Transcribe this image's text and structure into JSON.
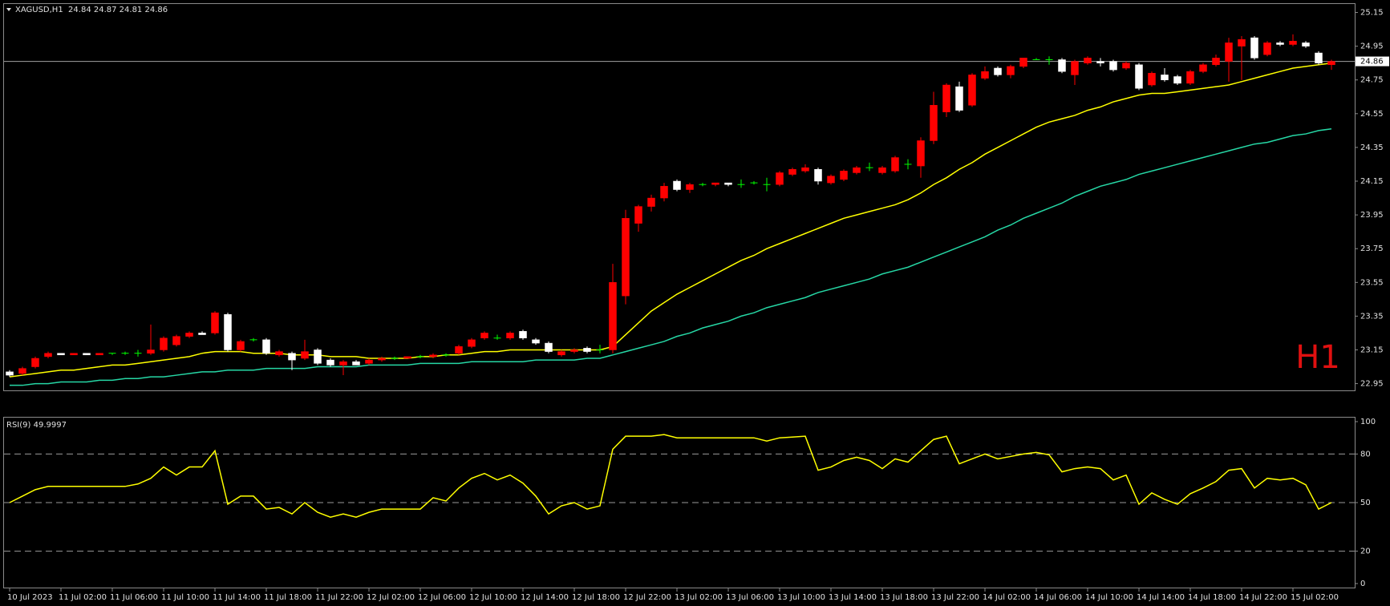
{
  "chart_data": [
    {
      "type": "candlestick",
      "title": "XAGUSD,H1  24.84 24.87 24.81 24.86",
      "annotation": "H1",
      "open": [
        23.02,
        23.01,
        23.05,
        23.11,
        23.13,
        23.12,
        23.13,
        23.12,
        23.13,
        23.13,
        23.13,
        23.13,
        23.15,
        23.18,
        23.23,
        23.25,
        23.25,
        23.36,
        23.15,
        23.21,
        23.21,
        23.12,
        23.13,
        23.1,
        23.15,
        23.09,
        23.06,
        23.08,
        23.07,
        23.09,
        23.1,
        23.1,
        23.11,
        23.11,
        23.12,
        23.13,
        23.17,
        23.22,
        23.22,
        23.22,
        23.26,
        23.21,
        23.19,
        23.12,
        23.14,
        23.16,
        23.15,
        23.15,
        23.47,
        23.9,
        24.0,
        24.05,
        24.15,
        24.1,
        24.13,
        24.13,
        24.14,
        24.13,
        24.14,
        24.13,
        24.13,
        24.19,
        24.21,
        24.22,
        24.14,
        24.16,
        24.2,
        24.23,
        24.2,
        24.21,
        24.25,
        24.24,
        24.39,
        24.56,
        24.71,
        24.6,
        24.76,
        24.82,
        24.78,
        24.83,
        24.87,
        24.87,
        24.87,
        24.78,
        24.85,
        24.86,
        24.86,
        24.82,
        24.84,
        24.72,
        24.78,
        24.77,
        24.73,
        24.8,
        24.84,
        24.86,
        24.95,
        25.0,
        24.9,
        24.97,
        24.96,
        24.97,
        24.91,
        24.84
      ],
      "high": [
        23.03,
        23.05,
        23.11,
        23.14,
        23.13,
        23.13,
        23.13,
        23.13,
        23.13,
        23.14,
        23.15,
        23.3,
        23.23,
        23.24,
        23.26,
        23.26,
        23.38,
        23.37,
        23.21,
        23.22,
        23.22,
        23.15,
        23.14,
        23.21,
        23.16,
        23.1,
        23.09,
        23.09,
        23.1,
        23.11,
        23.11,
        23.11,
        23.12,
        23.13,
        23.13,
        23.18,
        23.22,
        23.26,
        23.24,
        23.26,
        23.27,
        23.22,
        23.2,
        23.15,
        23.16,
        23.17,
        23.18,
        23.66,
        23.98,
        24.01,
        24.07,
        24.14,
        24.16,
        24.14,
        24.14,
        24.14,
        24.14,
        24.16,
        24.15,
        24.17,
        24.21,
        24.23,
        24.25,
        24.23,
        24.19,
        24.22,
        24.24,
        24.26,
        24.24,
        24.3,
        24.28,
        24.41,
        24.68,
        24.73,
        24.74,
        24.79,
        24.83,
        24.83,
        24.84,
        24.88,
        24.88,
        24.89,
        24.88,
        24.87,
        24.89,
        24.88,
        24.87,
        24.86,
        24.85,
        24.8,
        24.82,
        24.78,
        24.81,
        24.85,
        24.9,
        25.0,
        25.01,
        25.01,
        24.98,
        24.98,
        25.02,
        24.98,
        24.92,
        24.87
      ],
      "low": [
        22.99,
        23.0,
        23.04,
        23.1,
        23.12,
        23.12,
        23.12,
        23.12,
        23.12,
        23.12,
        23.11,
        23.12,
        23.14,
        23.17,
        23.22,
        23.24,
        23.24,
        23.14,
        23.14,
        23.2,
        23.12,
        23.11,
        23.03,
        23.09,
        23.06,
        23.05,
        23.0,
        23.06,
        23.06,
        23.08,
        23.09,
        23.1,
        23.1,
        23.1,
        23.11,
        23.12,
        23.16,
        23.21,
        23.21,
        23.21,
        23.21,
        23.18,
        23.13,
        23.11,
        23.13,
        23.13,
        23.13,
        23.13,
        23.42,
        23.85,
        23.97,
        24.03,
        24.09,
        24.08,
        24.12,
        24.12,
        24.12,
        24.11,
        24.13,
        24.09,
        24.12,
        24.18,
        24.2,
        24.13,
        24.13,
        24.15,
        24.19,
        24.21,
        24.19,
        24.2,
        24.22,
        24.17,
        24.37,
        24.53,
        24.56,
        24.59,
        24.75,
        24.77,
        24.76,
        24.82,
        24.87,
        24.84,
        24.79,
        24.72,
        24.84,
        24.83,
        24.8,
        24.81,
        24.69,
        24.71,
        24.74,
        24.72,
        24.72,
        24.79,
        24.83,
        24.74,
        24.75,
        24.87,
        24.89,
        24.95,
        24.95,
        24.94,
        24.84,
        24.81
      ],
      "close": [
        23.0,
        23.04,
        23.1,
        23.13,
        23.12,
        23.13,
        23.12,
        23.13,
        23.13,
        23.13,
        23.13,
        23.15,
        23.22,
        23.23,
        23.25,
        23.24,
        23.37,
        23.15,
        23.2,
        23.21,
        23.13,
        23.14,
        23.09,
        23.14,
        23.07,
        23.06,
        23.08,
        23.06,
        23.09,
        23.1,
        23.1,
        23.11,
        23.11,
        23.12,
        23.12,
        23.17,
        23.21,
        23.25,
        23.22,
        23.25,
        23.22,
        23.19,
        23.14,
        23.14,
        23.15,
        23.14,
        23.15,
        23.55,
        23.93,
        24.0,
        24.05,
        24.12,
        24.1,
        24.13,
        24.13,
        24.14,
        24.13,
        24.13,
        24.14,
        24.13,
        24.2,
        24.22,
        24.23,
        24.15,
        24.18,
        24.21,
        24.23,
        24.23,
        24.23,
        24.29,
        24.25,
        24.39,
        24.6,
        24.72,
        24.57,
        24.78,
        24.8,
        24.78,
        24.83,
        24.88,
        24.87,
        24.87,
        24.8,
        24.86,
        24.88,
        24.85,
        24.81,
        24.85,
        24.7,
        24.79,
        24.75,
        24.73,
        24.8,
        24.84,
        24.88,
        24.97,
        24.99,
        24.88,
        24.97,
        24.96,
        24.98,
        24.95,
        24.85,
        24.86
      ],
      "up_color": "#ff0000",
      "down_color": "#ffffff",
      "doji_color": "#00ff00",
      "series": [
        {
          "color": "#ffff00",
          "values": [
            22.99,
            23.0,
            23.01,
            23.02,
            23.03,
            23.03,
            23.04,
            23.05,
            23.06,
            23.06,
            23.07,
            23.08,
            23.09,
            23.1,
            23.11,
            23.13,
            23.14,
            23.14,
            23.14,
            23.13,
            23.13,
            23.13,
            23.12,
            23.12,
            23.12,
            23.11,
            23.11,
            23.11,
            23.1,
            23.1,
            23.1,
            23.1,
            23.11,
            23.11,
            23.12,
            23.12,
            23.13,
            23.14,
            23.14,
            23.15,
            23.15,
            23.15,
            23.15,
            23.15,
            23.15,
            23.15,
            23.15,
            23.17,
            23.24,
            23.31,
            23.38,
            23.43,
            23.48,
            23.52,
            23.56,
            23.6,
            23.64,
            23.68,
            23.71,
            23.75,
            23.78,
            23.81,
            23.84,
            23.87,
            23.9,
            23.93,
            23.95,
            23.97,
            23.99,
            24.01,
            24.04,
            24.08,
            24.13,
            24.17,
            24.22,
            24.26,
            24.31,
            24.35,
            24.39,
            24.43,
            24.47,
            24.5,
            24.52,
            24.54,
            24.57,
            24.59,
            24.62,
            24.64,
            24.66,
            24.67,
            24.67,
            24.68,
            24.69,
            24.7,
            24.71,
            24.72,
            24.74,
            24.76,
            24.78,
            24.8,
            24.82,
            24.83,
            24.84,
            24.85
          ]
        },
        {
          "color": "#26d7a5",
          "values": [
            22.94,
            22.94,
            22.95,
            22.95,
            22.96,
            22.96,
            22.96,
            22.97,
            22.97,
            22.98,
            22.98,
            22.99,
            22.99,
            23.0,
            23.01,
            23.02,
            23.02,
            23.03,
            23.03,
            23.03,
            23.04,
            23.04,
            23.04,
            23.04,
            23.05,
            23.05,
            23.05,
            23.05,
            23.06,
            23.06,
            23.06,
            23.06,
            23.07,
            23.07,
            23.07,
            23.07,
            23.08,
            23.08,
            23.08,
            23.08,
            23.08,
            23.09,
            23.09,
            23.09,
            23.09,
            23.1,
            23.1,
            23.12,
            23.14,
            23.16,
            23.18,
            23.2,
            23.23,
            23.25,
            23.28,
            23.3,
            23.32,
            23.35,
            23.37,
            23.4,
            23.42,
            23.44,
            23.46,
            23.49,
            23.51,
            23.53,
            23.55,
            23.57,
            23.6,
            23.62,
            23.64,
            23.67,
            23.7,
            23.73,
            23.76,
            23.79,
            23.82,
            23.86,
            23.89,
            23.93,
            23.96,
            23.99,
            24.02,
            24.06,
            24.09,
            24.12,
            24.14,
            24.16,
            24.19,
            24.21,
            24.23,
            24.25,
            24.27,
            24.29,
            24.31,
            24.33,
            24.35,
            24.37,
            24.38,
            24.4,
            24.42,
            24.43,
            24.45,
            24.46
          ]
        }
      ],
      "last_price": 24.86,
      "ylim": [
        22.91,
        25.2
      ],
      "yticks": [
        22.95,
        23.15,
        23.35,
        23.55,
        23.75,
        23.95,
        24.15,
        24.35,
        24.55,
        24.75,
        24.95,
        25.15
      ],
      "grid": false
    },
    {
      "type": "line",
      "title": "RSI(9) 49.9997",
      "categories": [
        "10 Jul 2023",
        null,
        null,
        null,
        "11 Jul 02:00",
        null,
        null,
        null,
        "11 Jul 06:00",
        null,
        null,
        null,
        "11 Jul 10:00",
        null,
        null,
        null,
        "11 Jul 14:00",
        null,
        null,
        null,
        "11 Jul 18:00",
        null,
        null,
        null,
        "11 Jul 22:00",
        null,
        null,
        null,
        "12 Jul 02:00",
        null,
        null,
        null,
        "12 Jul 06:00",
        null,
        null,
        null,
        "12 Jul 10:00",
        null,
        null,
        null,
        "12 Jul 14:00",
        null,
        null,
        null,
        "12 Jul 18:00",
        null,
        null,
        null,
        "12 Jul 22:00",
        null,
        null,
        null,
        "13 Jul 02:00",
        null,
        null,
        null,
        "13 Jul 06:00",
        null,
        null,
        null,
        "13 Jul 10:00",
        null,
        null,
        null,
        "13 Jul 14:00",
        null,
        null,
        null,
        "13 Jul 18:00",
        null,
        null,
        null,
        "13 Jul 22:00",
        null,
        null,
        null,
        "14 Jul 02:00",
        null,
        null,
        null,
        "14 Jul 06:00",
        null,
        null,
        null,
        "14 Jul 10:00",
        null,
        null,
        null,
        "14 Jul 14:00",
        null,
        null,
        null,
        "14 Jul 18:00",
        null,
        null,
        null,
        "14 Jul 22:00",
        null,
        null,
        null,
        "15 Jul 02:00",
        null,
        null,
        null
      ],
      "series": [
        {
          "color": "#ffff00",
          "values": [
            50,
            54,
            58,
            60,
            60,
            60,
            60,
            60,
            60,
            60,
            61.5,
            65,
            72,
            67,
            72,
            72,
            82,
            49,
            54,
            54,
            46,
            47,
            43,
            50,
            44,
            41,
            43,
            41,
            44,
            46,
            46,
            46,
            46,
            53,
            51,
            59,
            65,
            68,
            64,
            67,
            62,
            54,
            43,
            48,
            50,
            46,
            48,
            83,
            91,
            91,
            91,
            92,
            90,
            90,
            90,
            90,
            90,
            90,
            90,
            88,
            90,
            90.5,
            91,
            70,
            72,
            76,
            78,
            76,
            71,
            77,
            75,
            82,
            89,
            91,
            74,
            77,
            80,
            77,
            78.5,
            80,
            81,
            79.5,
            69,
            71,
            72,
            71,
            64,
            67,
            49,
            56,
            52,
            49,
            55.5,
            59,
            63,
            70,
            71,
            59,
            65,
            64,
            65,
            61,
            46,
            49.9997
          ]
        }
      ],
      "ylim": [
        0,
        100
      ],
      "yticks": [
        0,
        20,
        50,
        80,
        100
      ],
      "levels": [
        20,
        50,
        80
      ]
    }
  ]
}
